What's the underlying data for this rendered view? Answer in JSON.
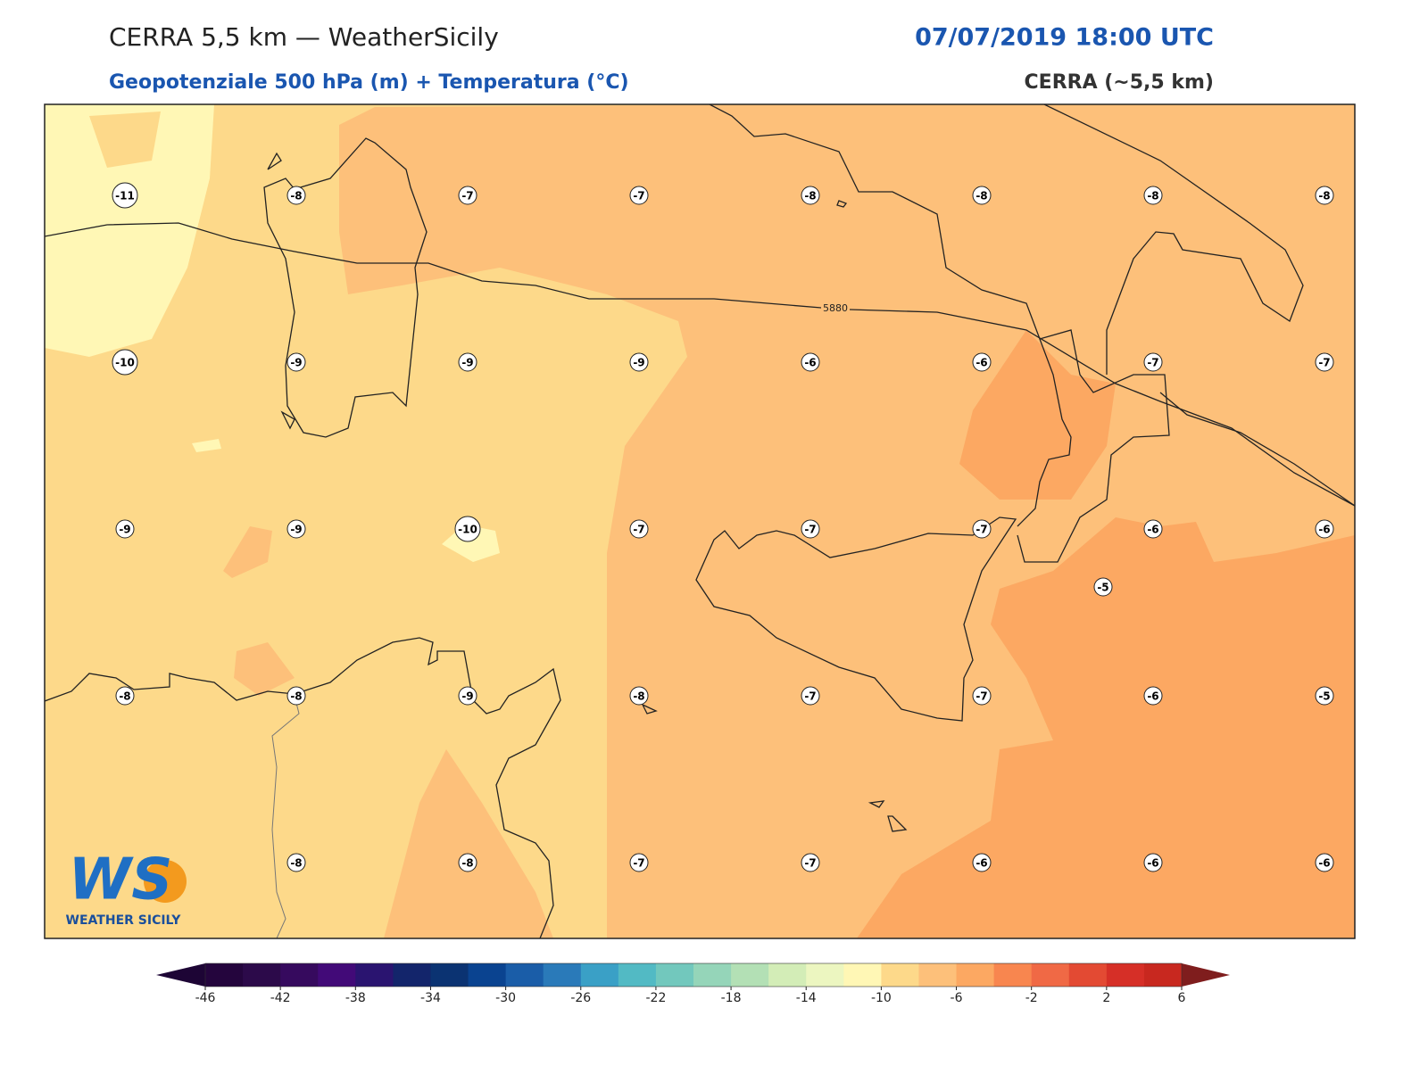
{
  "header": {
    "title": "CERRA 5,5 km — WeatherSicily",
    "datetime": "07/07/2019 18:00 UTC",
    "subtitle": "Geopotenziale 500 hPa (m) + Temperatura (°C)",
    "model": "CERRA (~5,5 km)"
  },
  "map": {
    "contour_label": "5880",
    "points": [
      -11,
      -8,
      -7,
      -7,
      -8,
      -8,
      -8,
      -8,
      -10,
      -9,
      -9,
      -9,
      -6,
      -6,
      -7,
      -7,
      -9,
      -9,
      -10,
      -7,
      -7,
      -7,
      -6,
      -6,
      -5,
      -8,
      -8,
      -9,
      -8,
      -7,
      -7,
      -6,
      -5,
      -8,
      -8,
      -7,
      -7,
      -6,
      -6,
      -6
    ]
  },
  "colorbar": {
    "levels": [
      -46,
      -44,
      -42,
      -40,
      -38,
      -36,
      -34,
      -32,
      -30,
      -28,
      -26,
      -24,
      -22,
      -20,
      -18,
      -16,
      -14,
      -12,
      -10,
      -8,
      -6,
      -4,
      -2,
      0,
      2,
      4,
      6
    ],
    "ticks": [
      -46,
      -42,
      -38,
      -34,
      -30,
      -26,
      -22,
      -18,
      -14,
      -10,
      -6,
      -2,
      2,
      6
    ],
    "colors": [
      "#24053d",
      "#2c0a4a",
      "#360a5e",
      "#420a78",
      "#2a1470",
      "#13256b",
      "#0b3372",
      "#0a4390",
      "#1a5da8",
      "#2a7ab9",
      "#3aa0c6",
      "#52bac4",
      "#72c8bd",
      "#95d5b9",
      "#b3e0b5",
      "#d3edb7",
      "#ecf6c0",
      "#fff7b5",
      "#fdd98a",
      "#fdc07a",
      "#fca862",
      "#f8864f",
      "#f06945",
      "#e34a33",
      "#d62f27",
      "#c8281f"
    ],
    "under_color": "#1d0535",
    "over_color": "#7f1d1d"
  },
  "logo": {
    "mark": "WS",
    "name": "WEATHER SICILY"
  }
}
